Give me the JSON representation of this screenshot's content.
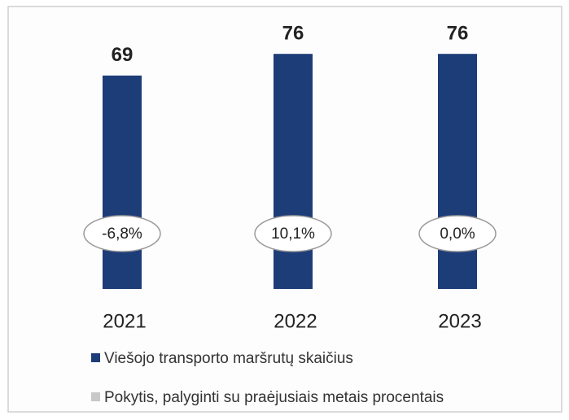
{
  "chart_data": {
    "type": "bar",
    "categories": [
      "2021",
      "2022",
      "2023"
    ],
    "series": [
      {
        "name": "Viešojo transporto maršrutų skaičius",
        "color": "#1d3d78",
        "values": [
          69,
          76,
          76
        ]
      },
      {
        "name": "Pokytis, palyginti su praėjusiais metais procentais",
        "color": "#c8c8c8",
        "values": [
          -6.8,
          10.1,
          0.0
        ],
        "value_labels": [
          "-6,8%",
          "10,1%",
          "0,0%"
        ]
      }
    ],
    "ylim": [
      0,
      80
    ]
  }
}
